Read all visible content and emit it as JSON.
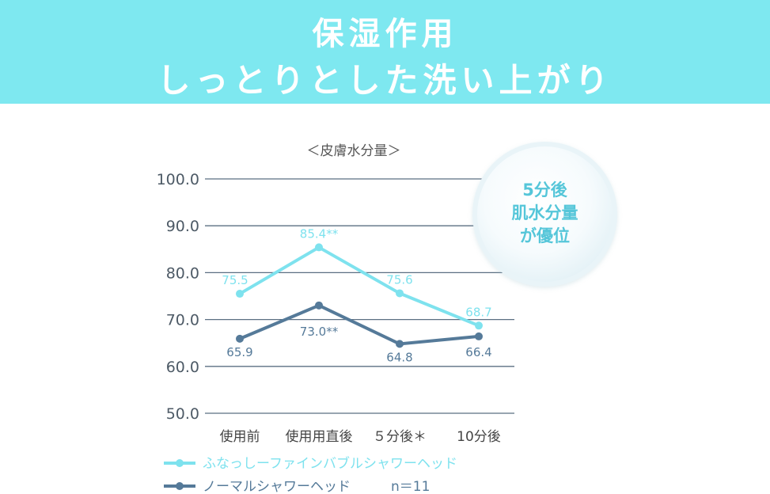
{
  "header": {
    "line1": "保湿作用",
    "line2": "しっとりとした洗い上がり",
    "background_color": "#7ee8f0"
  },
  "callout": {
    "line1": "5分後",
    "line2": "肌水分量",
    "line3": "が優位",
    "text_color": "#55c6d9"
  },
  "chart_data": {
    "type": "line",
    "title": "＜皮膚水分量＞",
    "xlabel": "",
    "ylabel": "",
    "ylim": [
      50.0,
      100.0
    ],
    "yticks": [
      "100.0",
      "90.0",
      "80.0",
      "70.0",
      "60.0",
      "50.0"
    ],
    "ytick_values": [
      100,
      90,
      80,
      70,
      60,
      50
    ],
    "categories": [
      "使用前",
      "使用用直後",
      "５分後＊",
      "10分後"
    ],
    "grid": true,
    "legend_position": "bottom-left",
    "series": [
      {
        "name": "ふなっしーファインバブルシャワーヘッド",
        "color": "#7ee2ee",
        "values": [
          75.5,
          85.4,
          75.6,
          68.7
        ],
        "labels": [
          "75.5",
          "85.4**",
          "75.6",
          "68.7"
        ]
      },
      {
        "name": "ノーマルシャワーヘッド",
        "color": "#557a99",
        "values": [
          65.9,
          73.0,
          64.8,
          66.4
        ],
        "labels": [
          "65.9",
          "73.0**",
          "64.8",
          "66.4"
        ]
      }
    ],
    "note": "n＝11"
  }
}
